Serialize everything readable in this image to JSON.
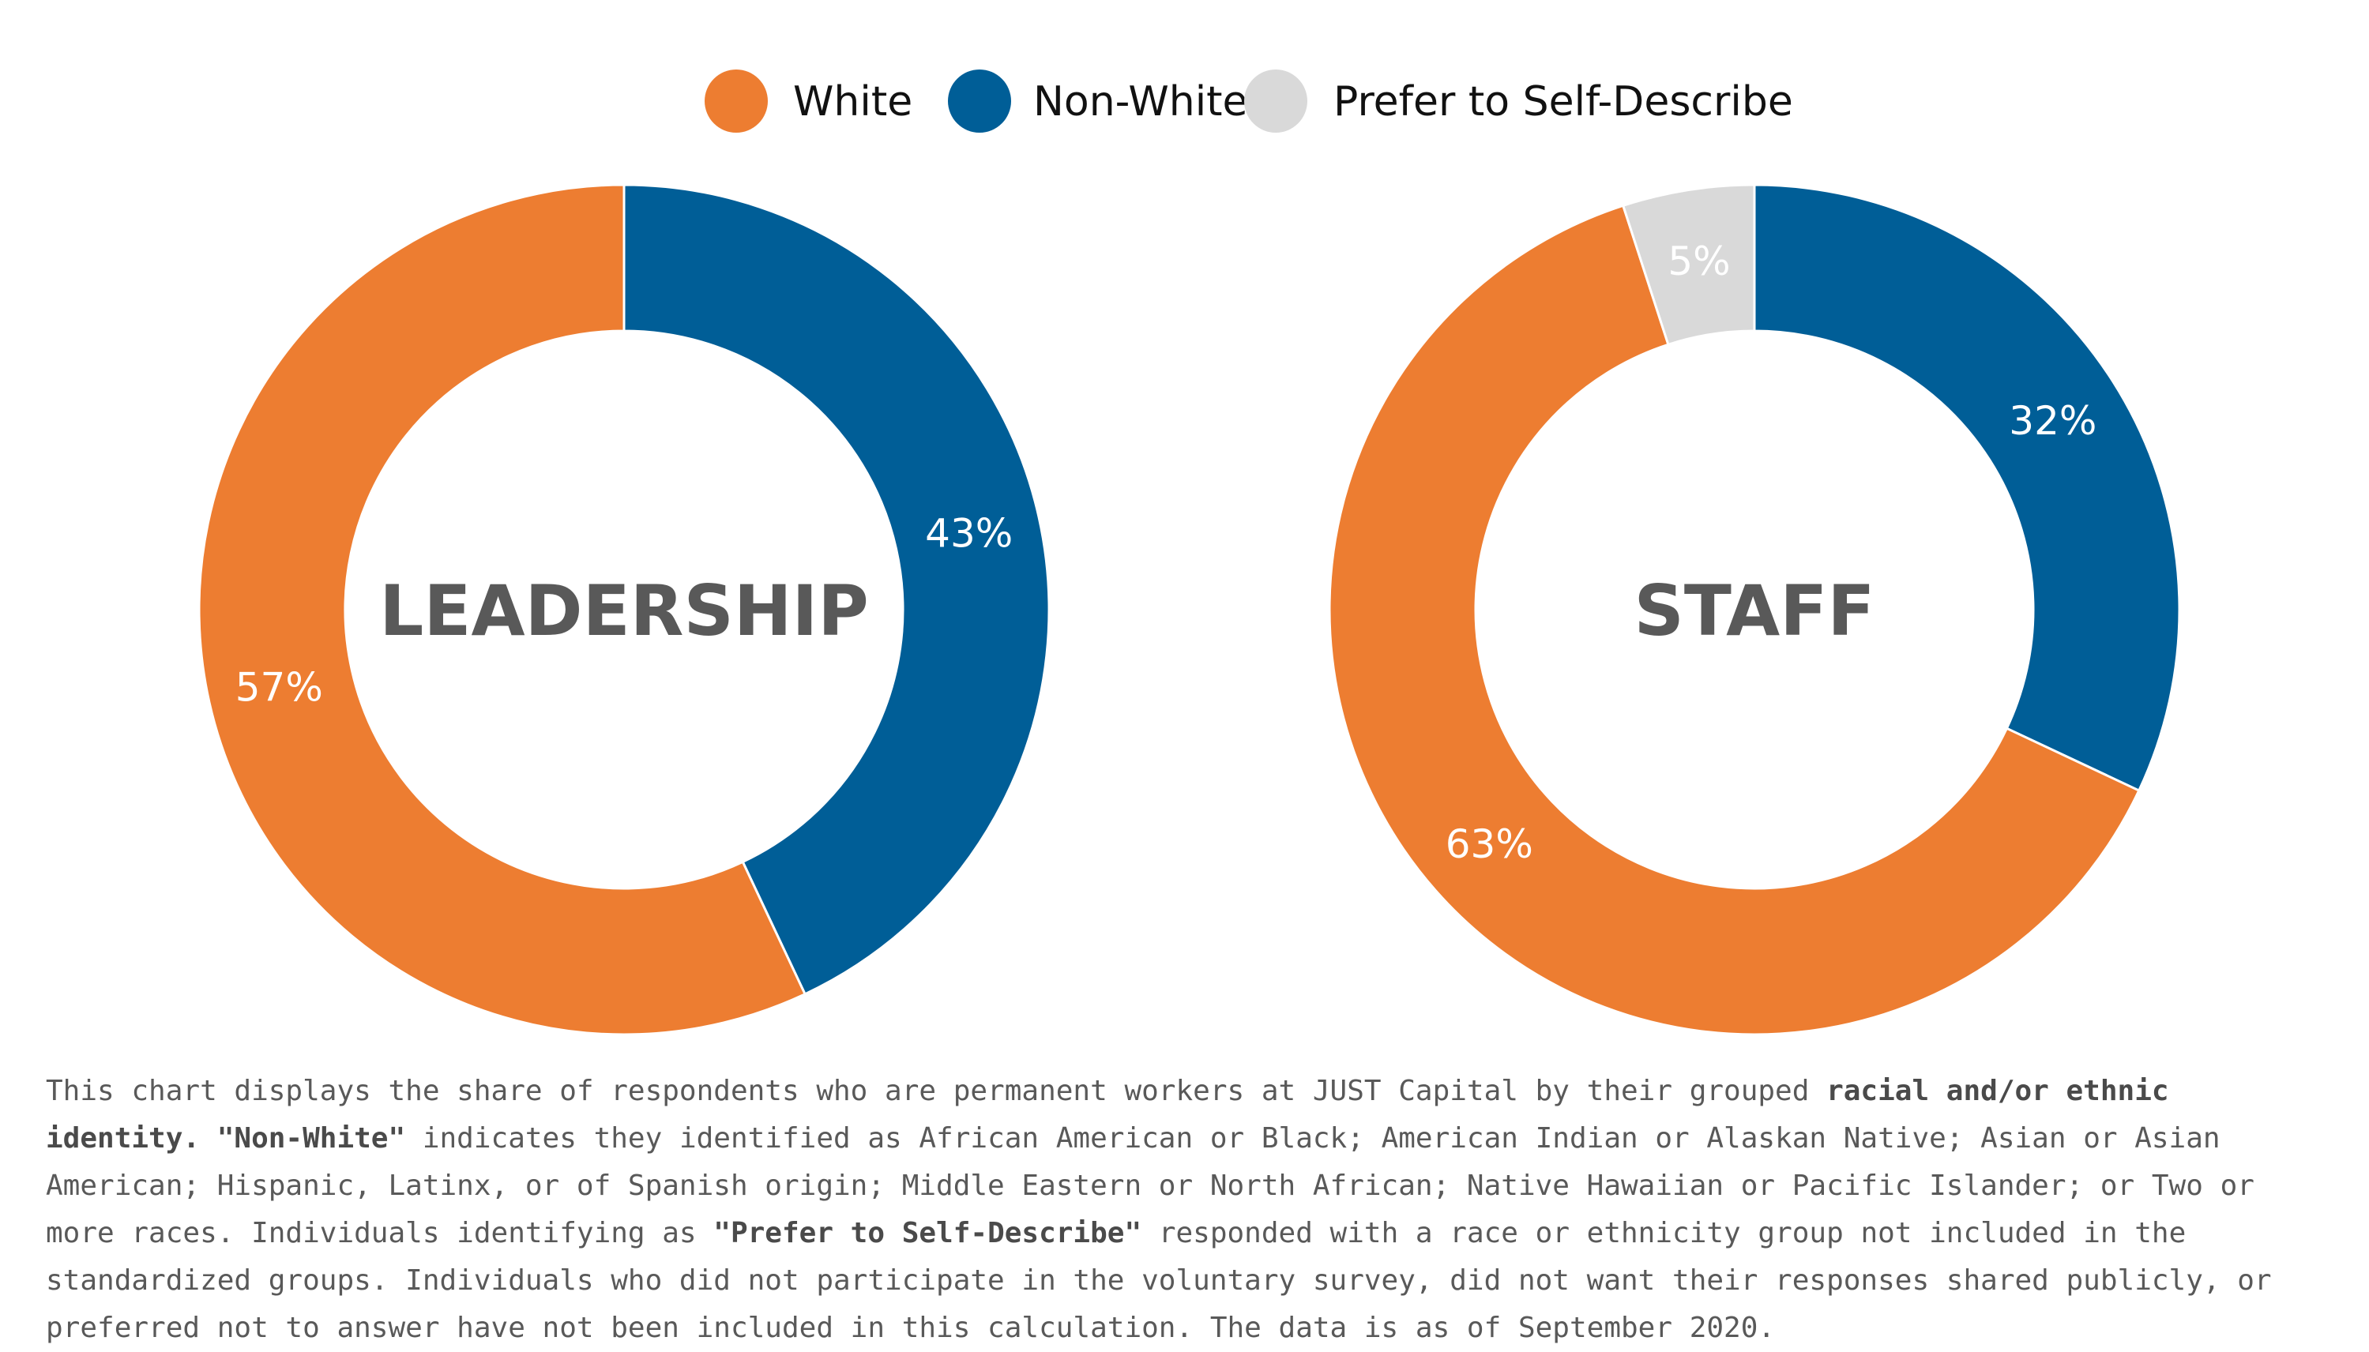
{
  "chart_data": [
    {
      "type": "pie",
      "center_label": "LEADERSHIP",
      "categories": [
        "White",
        "Non-White"
      ],
      "values": [
        57,
        43
      ],
      "value_labels": [
        "57%",
        "43%"
      ],
      "colors": [
        "#ED7D31",
        "#005E97"
      ]
    },
    {
      "type": "pie",
      "center_label": "STAFF",
      "categories": [
        "White",
        "Non-White",
        "Prefer to Self-Describe"
      ],
      "values": [
        63,
        32,
        5
      ],
      "value_labels": [
        "63%",
        "32%",
        "5%"
      ],
      "colors": [
        "#ED7D31",
        "#005E97",
        "#D9D9D9"
      ]
    }
  ],
  "legend": [
    {
      "label": "White",
      "color": "#ED7D31"
    },
    {
      "label": "Non-White",
      "color": "#005E97"
    },
    {
      "label": "Prefer to Self-Describe",
      "color": "#D9D9D9"
    }
  ],
  "footnote": {
    "p1": "This chart displays the share of respondents who are permanent workers at JUST Capital by their grouped ",
    "b1": "racial and/or ethnic identity. \"Non-White\"",
    "p2": " indicates they identified as African American or Black; American Indian or Alaskan Native; Asian or Asian American; Hispanic, Latinx, or of Spanish origin; Middle Eastern or North African; Native Hawaiian or Pacific Islander; or Two or more races. Individuals identifying as ",
    "b2": "\"Prefer to Self-Describe\"",
    "p3": " responded with a race or ethnicity group not included in the standardized groups. Individuals who did not participate in the voluntary survey, did not want their responses shared publicly, or preferred not to answer have not been included in this calculation. The data is as of September 2020."
  }
}
